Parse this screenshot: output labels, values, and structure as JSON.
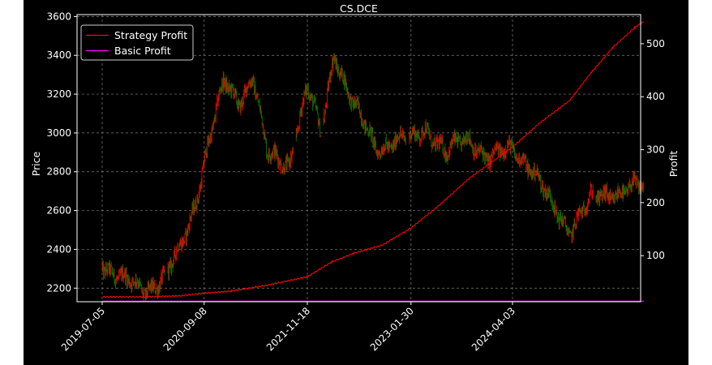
{
  "chart_data": {
    "type": "line",
    "title": "CS.DCE",
    "ylabel": "Price",
    "y2label": "Profit",
    "xlabel": "",
    "x_ticks": [
      "2019-07-05",
      "2020-09-08",
      "2021-11-18",
      "2023-01-30",
      "2024-04-03"
    ],
    "ylim": [
      2130,
      3610
    ],
    "y_ticks": [
      2200,
      2400,
      2600,
      2800,
      3000,
      3200,
      3400,
      3600
    ],
    "y2lim": [
      13,
      555
    ],
    "y2_ticks": [
      100,
      200,
      300,
      400,
      500
    ],
    "grid": true,
    "legend_position": "top-left",
    "colors": {
      "strategy": "#ff0000",
      "basic": "#ff00ff",
      "candle_up": "#ff0000",
      "candle_down": "#008000",
      "background": "#000000",
      "grid": "#808080"
    },
    "series": [
      {
        "name": "Strategy Profit",
        "axis": "right",
        "x": [
          "2019-07-05",
          "2020-01-01",
          "2020-06-01",
          "2020-09-08",
          "2021-01-01",
          "2021-06-01",
          "2021-11-18",
          "2022-03-01",
          "2022-06-01",
          "2022-10-01",
          "2023-01-30",
          "2023-06-01",
          "2023-10-01",
          "2024-01-01",
          "2024-04-03",
          "2024-08-01",
          "2024-12-01",
          "2025-03-01",
          "2025-06-01",
          "2025-09-01",
          "2025-10-10"
        ],
        "values": [
          22,
          22,
          24,
          29,
          33,
          44,
          60,
          88,
          104,
          120,
          152,
          196,
          245,
          275,
          305,
          352,
          393,
          445,
          493,
          530,
          542
        ]
      },
      {
        "name": "Basic Profit",
        "axis": "right",
        "x": [
          "2019-07-05",
          "2025-10-10"
        ],
        "values": [
          14,
          14
        ]
      }
    ],
    "price_path": {
      "x": [
        "2019-07-05",
        "2019-10-01",
        "2020-01-01",
        "2020-04-01",
        "2020-06-01",
        "2020-08-01",
        "2020-09-08",
        "2020-12-01",
        "2021-02-01",
        "2021-04-01",
        "2021-06-01",
        "2021-09-01",
        "2021-11-18",
        "2022-01-15",
        "2022-03-10",
        "2022-06-01",
        "2022-09-01",
        "2023-01-30",
        "2023-04-01",
        "2023-07-01",
        "2023-10-01",
        "2024-01-01",
        "2024-04-03",
        "2024-06-01",
        "2024-09-01",
        "2024-12-01",
        "2025-03-01",
        "2025-06-01",
        "2025-10-10"
      ],
      "values": [
        2340,
        2230,
        2200,
        2260,
        2400,
        2650,
        2860,
        3250,
        3170,
        3300,
        2880,
        2850,
        3230,
        2980,
        3430,
        3130,
        2940,
        2960,
        3040,
        2880,
        2990,
        2850,
        2930,
        2860,
        2650,
        2510,
        2650,
        2700,
        2710
      ]
    },
    "price_gaps": [
      "2020-04-01",
      "2021-09-25",
      "2022-01-20",
      "2023-01-15",
      "2025-03-15"
    ]
  }
}
